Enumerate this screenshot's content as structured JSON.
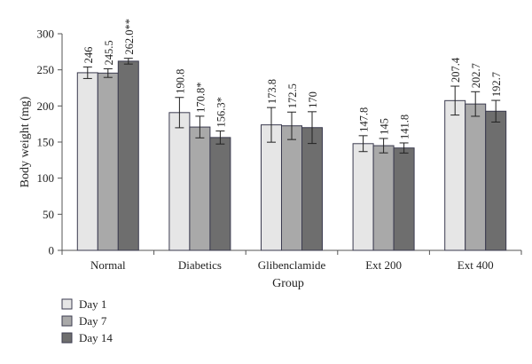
{
  "chart_data": {
    "type": "bar",
    "xlabel": "Group",
    "ylabel": "Body weight (mg)",
    "ylim": [
      0,
      300
    ],
    "yticks": [
      0,
      50,
      100,
      150,
      200,
      250,
      300
    ],
    "grid": false,
    "legend_position": "bottom-left",
    "categories": [
      "Normal",
      "Diabetics",
      "Glibenclamide",
      "Ext 200",
      "Ext 400"
    ],
    "series": [
      {
        "name": "Day 1",
        "color": "#e6e6e6",
        "values": [
          246,
          190.8,
          173.8,
          147.8,
          207.4
        ],
        "errors": [
          8,
          21,
          24,
          11,
          20
        ],
        "labels": [
          "246",
          "190.8",
          "173.8",
          "147.8",
          "207.4"
        ]
      },
      {
        "name": "Day 7",
        "color": "#a9a9a9",
        "values": [
          245.5,
          170.8,
          172.5,
          145,
          202.7
        ],
        "errors": [
          6,
          15,
          19,
          10,
          17
        ],
        "labels": [
          "245.5",
          "170.8*",
          "172.5",
          "145",
          "202.7"
        ]
      },
      {
        "name": "Day 14",
        "color": "#6e6e6e",
        "values": [
          262.0,
          156.3,
          170,
          141.8,
          192.7
        ],
        "errors": [
          4,
          9,
          22,
          7,
          15
        ],
        "labels": [
          "262.0**",
          "156.3*",
          "170",
          "141.8",
          "192.7"
        ]
      }
    ]
  }
}
